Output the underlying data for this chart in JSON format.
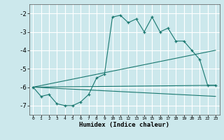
{
  "xlabel": "Humidex (Indice chaleur)",
  "ylabel": "",
  "background_color": "#cce8ec",
  "grid_color": "#ffffff",
  "line_color": "#1a7870",
  "xlim": [
    -0.5,
    23.5
  ],
  "ylim": [
    -7.5,
    -1.5
  ],
  "yticks": [
    -7,
    -6,
    -5,
    -4,
    -3,
    -2
  ],
  "xticks": [
    0,
    1,
    2,
    3,
    4,
    5,
    6,
    7,
    8,
    9,
    10,
    11,
    12,
    13,
    14,
    15,
    16,
    17,
    18,
    19,
    20,
    21,
    22,
    23
  ],
  "series": [
    {
      "x": [
        0,
        1,
        2,
        3,
        4,
        5,
        6,
        7,
        8,
        9,
        10,
        11,
        12,
        13,
        14,
        15,
        16,
        17,
        18,
        19,
        20,
        21,
        22,
        23
      ],
      "y": [
        -6.0,
        -6.5,
        -6.4,
        -6.9,
        -7.0,
        -7.0,
        -6.8,
        -6.4,
        -5.5,
        -5.3,
        -2.2,
        -2.1,
        -2.5,
        -2.3,
        -3.0,
        -2.2,
        -3.0,
        -2.8,
        -3.5,
        -3.5,
        -4.0,
        -4.5,
        -5.9,
        -5.9
      ]
    },
    {
      "x": [
        0,
        23
      ],
      "y": [
        -6.0,
        -5.9
      ]
    },
    {
      "x": [
        0,
        23
      ],
      "y": [
        -6.0,
        -4.0
      ]
    },
    {
      "x": [
        0,
        23
      ],
      "y": [
        -6.0,
        -6.5
      ]
    }
  ]
}
